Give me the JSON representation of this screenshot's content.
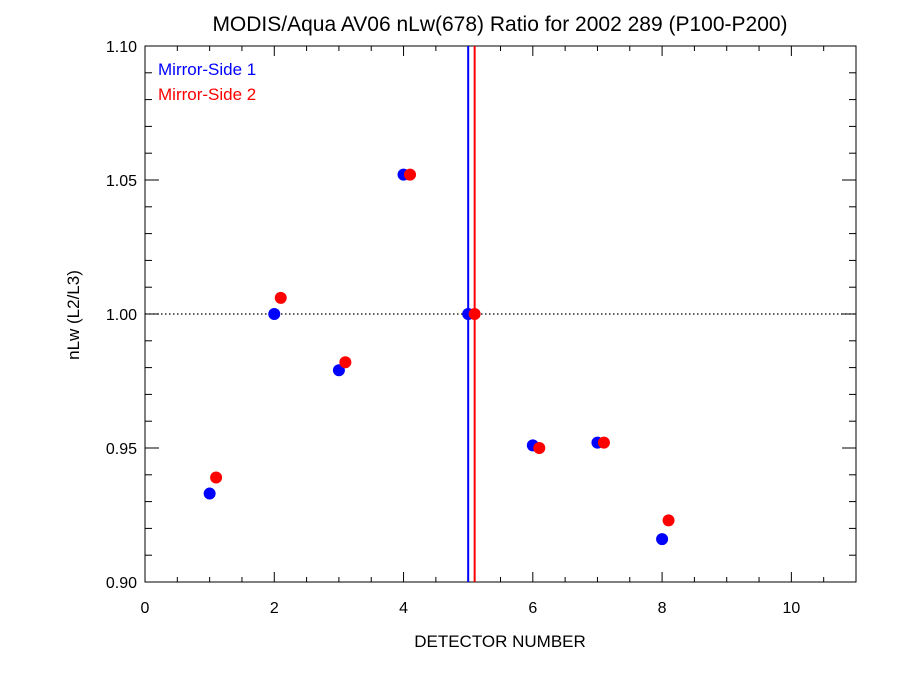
{
  "colors": {
    "mirror_side_1": "#0000ff",
    "mirror_side_2": "#ff0000",
    "axis": "#000000",
    "reference_line": "#000000"
  },
  "chart_data": {
    "type": "scatter",
    "title": "MODIS/Aqua AV06 nLw(678) Ratio for 2002 289 (P100-P200)",
    "xlabel": "DETECTOR NUMBER",
    "ylabel": "nLw (L2/L3)",
    "xlim": [
      0,
      11
    ],
    "ylim": [
      0.9,
      1.1
    ],
    "x_ticks": [
      0,
      2,
      4,
      6,
      8,
      10
    ],
    "x_tick_labels": [
      "0",
      "2",
      "4",
      "6",
      "8",
      "10"
    ],
    "y_ticks": [
      0.9,
      0.95,
      1.0,
      1.05,
      1.1
    ],
    "y_tick_labels": [
      "0.90",
      "0.95",
      "1.00",
      "1.05",
      "1.10"
    ],
    "grid": false,
    "legend_position": "top-left",
    "series": [
      {
        "name": "Mirror-Side 1",
        "color": "#0000ff",
        "x": [
          1,
          2,
          3,
          4,
          5,
          6,
          7,
          8
        ],
        "y": [
          0.933,
          1.0,
          0.979,
          1.052,
          1.0,
          0.951,
          0.952,
          0.916
        ]
      },
      {
        "name": "Mirror-Side 2",
        "color": "#ff0000",
        "x": [
          1.1,
          2.1,
          3.1,
          4.1,
          5.1,
          6.1,
          7.1,
          8.1
        ],
        "y": [
          0.939,
          1.006,
          0.982,
          1.052,
          1.0,
          0.95,
          0.952,
          0.923
        ]
      }
    ],
    "reference_lines": [
      {
        "orientation": "horizontal",
        "value": 1.0,
        "style": "dotted",
        "color": "#000000"
      },
      {
        "orientation": "vertical",
        "value": 5.0,
        "style": "solid",
        "color": "#0000ff"
      },
      {
        "orientation": "vertical",
        "value": 5.1,
        "style": "solid",
        "color": "#ff0000"
      }
    ]
  }
}
